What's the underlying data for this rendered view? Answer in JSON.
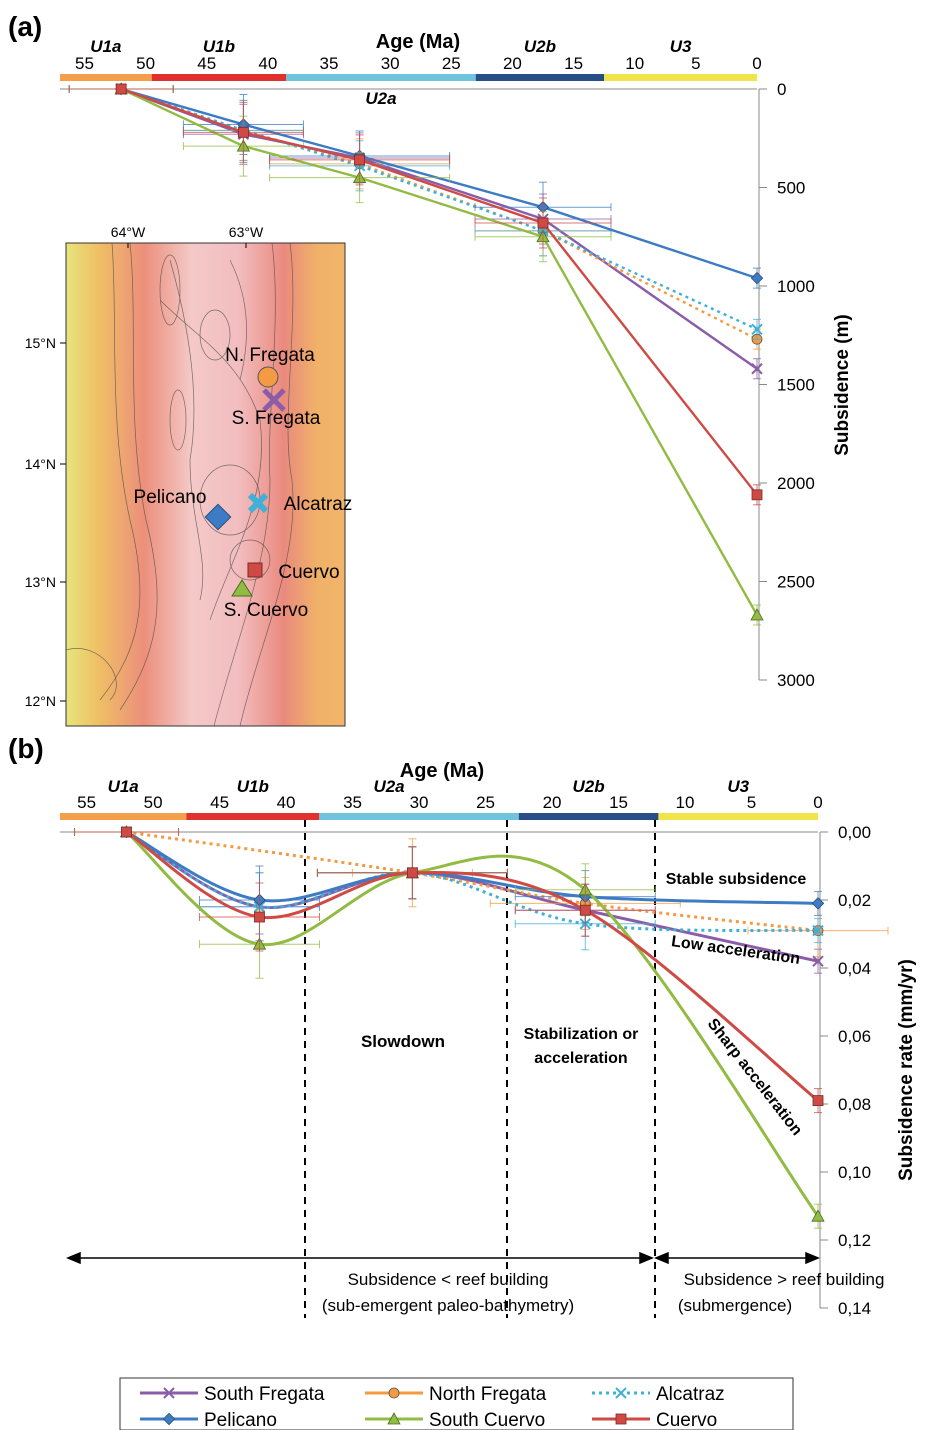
{
  "panel_a_label": "(a)",
  "panel_b_label": "(b)",
  "colors": {
    "south_fregata": "#8b5ca8",
    "north_fregata": "#f39a42",
    "alcatraz": "#3fb0d8",
    "pelicano": "#3d7cc4",
    "south_cuervo": "#92bb43",
    "cuervo": "#cf4a45",
    "u1a": "#f4a04a",
    "u1b": "#e0312e",
    "u2a": "#6ec4dd",
    "u2b": "#274f86",
    "u3": "#f1e34a"
  },
  "map": {
    "lon_labels": [
      "64°W",
      "63°W"
    ],
    "lat_labels": [
      "15°N",
      "14°N",
      "13°N",
      "12°N"
    ],
    "sites": [
      {
        "name": "N. Fregata",
        "marker": "circle",
        "color": "#f39a42"
      },
      {
        "name": "S. Fregata",
        "marker": "x",
        "color": "#8b5ca8"
      },
      {
        "name": "Pelicano",
        "marker": "diamond",
        "color": "#3d7cc4"
      },
      {
        "name": "Alcatraz",
        "marker": "star",
        "color": "#3fb0d8"
      },
      {
        "name": "Cuervo",
        "marker": "square",
        "color": "#cf4a45"
      },
      {
        "name": "S. Cuervo",
        "marker": "triangle",
        "color": "#92bb43"
      }
    ]
  },
  "chart_data": [
    {
      "type": "line",
      "panel": "(a)",
      "xlabel": "Age (Ma)",
      "ylabel": "Subsidence (m)",
      "xlim": [
        57,
        0
      ],
      "ylim": [
        0,
        3000
      ],
      "x_ticks": [
        "55",
        "50",
        "45",
        "40",
        "35",
        "30",
        "25",
        "20",
        "15",
        "10",
        "5",
        "0"
      ],
      "y_ticks": [
        "0",
        "500",
        "1000",
        "1500",
        "2000",
        "2500",
        "3000"
      ],
      "units": [
        {
          "name": "U1a",
          "from": 57,
          "to": 49.5
        },
        {
          "name": "U1b",
          "from": 49.5,
          "to": 38.5
        },
        {
          "name": "U2a",
          "from": 38.5,
          "to": 23
        },
        {
          "name": "U2b",
          "from": 23,
          "to": 12.5
        },
        {
          "name": "U3",
          "from": 12.5,
          "to": 0
        }
      ],
      "series": [
        {
          "name": "South Fregata",
          "x": [
            52,
            42,
            32.5,
            17.5,
            0
          ],
          "y": [
            0,
            230,
            350,
            660,
            1420
          ]
        },
        {
          "name": "North Fregata",
          "x": [
            52,
            42,
            32.5,
            17.5,
            0
          ],
          "y": [
            0,
            210,
            380,
            720,
            1270
          ]
        },
        {
          "name": "Alcatraz",
          "x": [
            52,
            42,
            32.5,
            17.5,
            0
          ],
          "y": [
            0,
            210,
            390,
            720,
            1220
          ]
        },
        {
          "name": "Pelicano",
          "x": [
            52,
            42,
            32.5,
            17.5,
            0
          ],
          "y": [
            0,
            180,
            340,
            600,
            960
          ]
        },
        {
          "name": "South Cuervo",
          "x": [
            52,
            42,
            32.5,
            17.5,
            0
          ],
          "y": [
            0,
            290,
            450,
            750,
            2670
          ]
        },
        {
          "name": "Cuervo",
          "x": [
            52,
            42,
            32.5,
            17.5,
            0
          ],
          "y": [
            0,
            220,
            360,
            680,
            2060
          ]
        }
      ]
    },
    {
      "type": "line",
      "panel": "(b)",
      "xlabel": "Age (Ma)",
      "ylabel": "Subsidence rate (mm/yr)",
      "xlim": [
        57,
        0
      ],
      "ylim": [
        0,
        0.14
      ],
      "x_ticks": [
        "55",
        "50",
        "45",
        "40",
        "35",
        "30",
        "25",
        "20",
        "15",
        "10",
        "5",
        "0"
      ],
      "y_ticks": [
        "0,00",
        "0,02",
        "0,04",
        "0,06",
        "0,08",
        "0,10",
        "0,12",
        "0,14"
      ],
      "units": [
        {
          "name": "U1a",
          "from": 57,
          "to": 47.5
        },
        {
          "name": "U1b",
          "from": 47.5,
          "to": 37.5
        },
        {
          "name": "U2a",
          "from": 37.5,
          "to": 22.5
        },
        {
          "name": "U2b",
          "from": 22.5,
          "to": 12
        },
        {
          "name": "U3",
          "from": 12,
          "to": 0
        }
      ],
      "series": [
        {
          "name": "South Fregata",
          "x": [
            52,
            42,
            30.5,
            17.5,
            0
          ],
          "y": [
            0,
            0.022,
            0.012,
            0.023,
            0.038
          ]
        },
        {
          "name": "North Fregata",
          "x": [
            52,
            30.5,
            17.5,
            0
          ],
          "y": [
            0,
            0.012,
            0.021,
            0.029
          ]
        },
        {
          "name": "Alcatraz",
          "x": [
            52,
            42,
            30.5,
            17.5,
            0
          ],
          "y": [
            0,
            0.022,
            0.012,
            0.027,
            0.029
          ]
        },
        {
          "name": "Pelicano",
          "x": [
            52,
            42,
            30.5,
            17.5,
            0
          ],
          "y": [
            0,
            0.02,
            0.012,
            0.019,
            0.021
          ]
        },
        {
          "name": "South Cuervo",
          "x": [
            52,
            42,
            30.5,
            17.5,
            0
          ],
          "y": [
            0,
            0.033,
            0.012,
            0.017,
            0.113
          ]
        },
        {
          "name": "Cuervo",
          "x": [
            52,
            42,
            30.5,
            17.5,
            0
          ],
          "y": [
            0,
            0.025,
            0.012,
            0.023,
            0.079
          ]
        }
      ],
      "annotations": {
        "stable": "Stable subsidence",
        "low": "Low acceleration",
        "sharp": "Sharp acceleration",
        "slowdown": "Slowdown",
        "stab1": "Stabilization or",
        "stab2": "acceleration",
        "left1": "Subsidence < reef building",
        "left2": "(sub-emergent paleo-bathymetry)",
        "right1": "Subsidence > reef building",
        "right2": "(submergence)"
      }
    }
  ],
  "legend": [
    "South Fregata",
    "North Fregata",
    "Alcatraz",
    "Pelicano",
    "South Cuervo",
    "Cuervo"
  ]
}
